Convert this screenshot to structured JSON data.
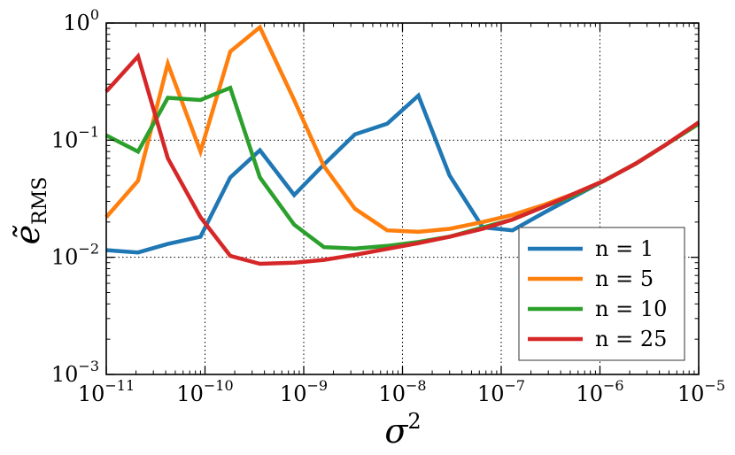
{
  "chart_data": {
    "type": "line",
    "xscale": "log",
    "yscale": "log",
    "xlim": [
      1e-11,
      1e-05
    ],
    "ylim": [
      0.001,
      1
    ],
    "xlabel": {
      "base": "σ",
      "sup": "2"
    },
    "ylabel": {
      "base": "ẽ",
      "sub": "RMS"
    },
    "grid": true,
    "legend_position": "lower-right",
    "x_ticks": [
      {
        "value": 1e-11,
        "base": "10",
        "exp": "−11"
      },
      {
        "value": 1e-10,
        "base": "10",
        "exp": "−10"
      },
      {
        "value": 1e-09,
        "base": "10",
        "exp": "−9"
      },
      {
        "value": 1e-08,
        "base": "10",
        "exp": "−8"
      },
      {
        "value": 1e-07,
        "base": "10",
        "exp": "−7"
      },
      {
        "value": 1e-06,
        "base": "10",
        "exp": "−6"
      },
      {
        "value": 1e-05,
        "base": "10",
        "exp": "−5"
      }
    ],
    "y_ticks": [
      {
        "value": 0.001,
        "base": "10",
        "exp": "−3"
      },
      {
        "value": 0.01,
        "base": "10",
        "exp": "−2"
      },
      {
        "value": 0.1,
        "base": "10",
        "exp": "−1"
      },
      {
        "value": 1,
        "base": "10",
        "exp": "0"
      }
    ],
    "x": [
      1e-11,
      2.1e-11,
      4.2e-11,
      9e-11,
      1.8e-10,
      3.6e-10,
      8e-10,
      1.6e-09,
      3.3e-09,
      7e-09,
      1.45e-08,
      3e-08,
      6.5e-08,
      1.3e-07,
      2.7e-07,
      5.5e-07,
      1.1e-06,
      2.3e-06,
      4.7e-06,
      1e-05
    ],
    "series": [
      {
        "name": "n = 1",
        "color": "#1f77b4",
        "values": [
          0.0115,
          0.011,
          0.013,
          0.015,
          0.048,
          0.082,
          0.034,
          0.062,
          0.112,
          0.138,
          0.24,
          0.05,
          0.018,
          0.017,
          0.024,
          0.033,
          0.045,
          0.063,
          0.092,
          0.138
        ]
      },
      {
        "name": "n = 5",
        "color": "#ff7f0e",
        "values": [
          0.022,
          0.045,
          0.45,
          0.08,
          0.57,
          0.92,
          0.22,
          0.06,
          0.026,
          0.017,
          0.0165,
          0.0175,
          0.02,
          0.023,
          0.028,
          0.035,
          0.045,
          0.063,
          0.092,
          0.138
        ]
      },
      {
        "name": "n = 10",
        "color": "#2ca02c",
        "values": [
          0.11,
          0.08,
          0.23,
          0.22,
          0.28,
          0.048,
          0.019,
          0.0122,
          0.0119,
          0.0125,
          0.0135,
          0.015,
          0.018,
          0.021,
          0.027,
          0.034,
          0.045,
          0.063,
          0.092,
          0.138
        ]
      },
      {
        "name": "n = 25",
        "color": "#d62728",
        "values": [
          0.26,
          0.52,
          0.07,
          0.022,
          0.0103,
          0.0088,
          0.009,
          0.0095,
          0.0105,
          0.0118,
          0.0132,
          0.015,
          0.0175,
          0.021,
          0.027,
          0.035,
          0.045,
          0.063,
          0.092,
          0.142
        ]
      }
    ]
  }
}
